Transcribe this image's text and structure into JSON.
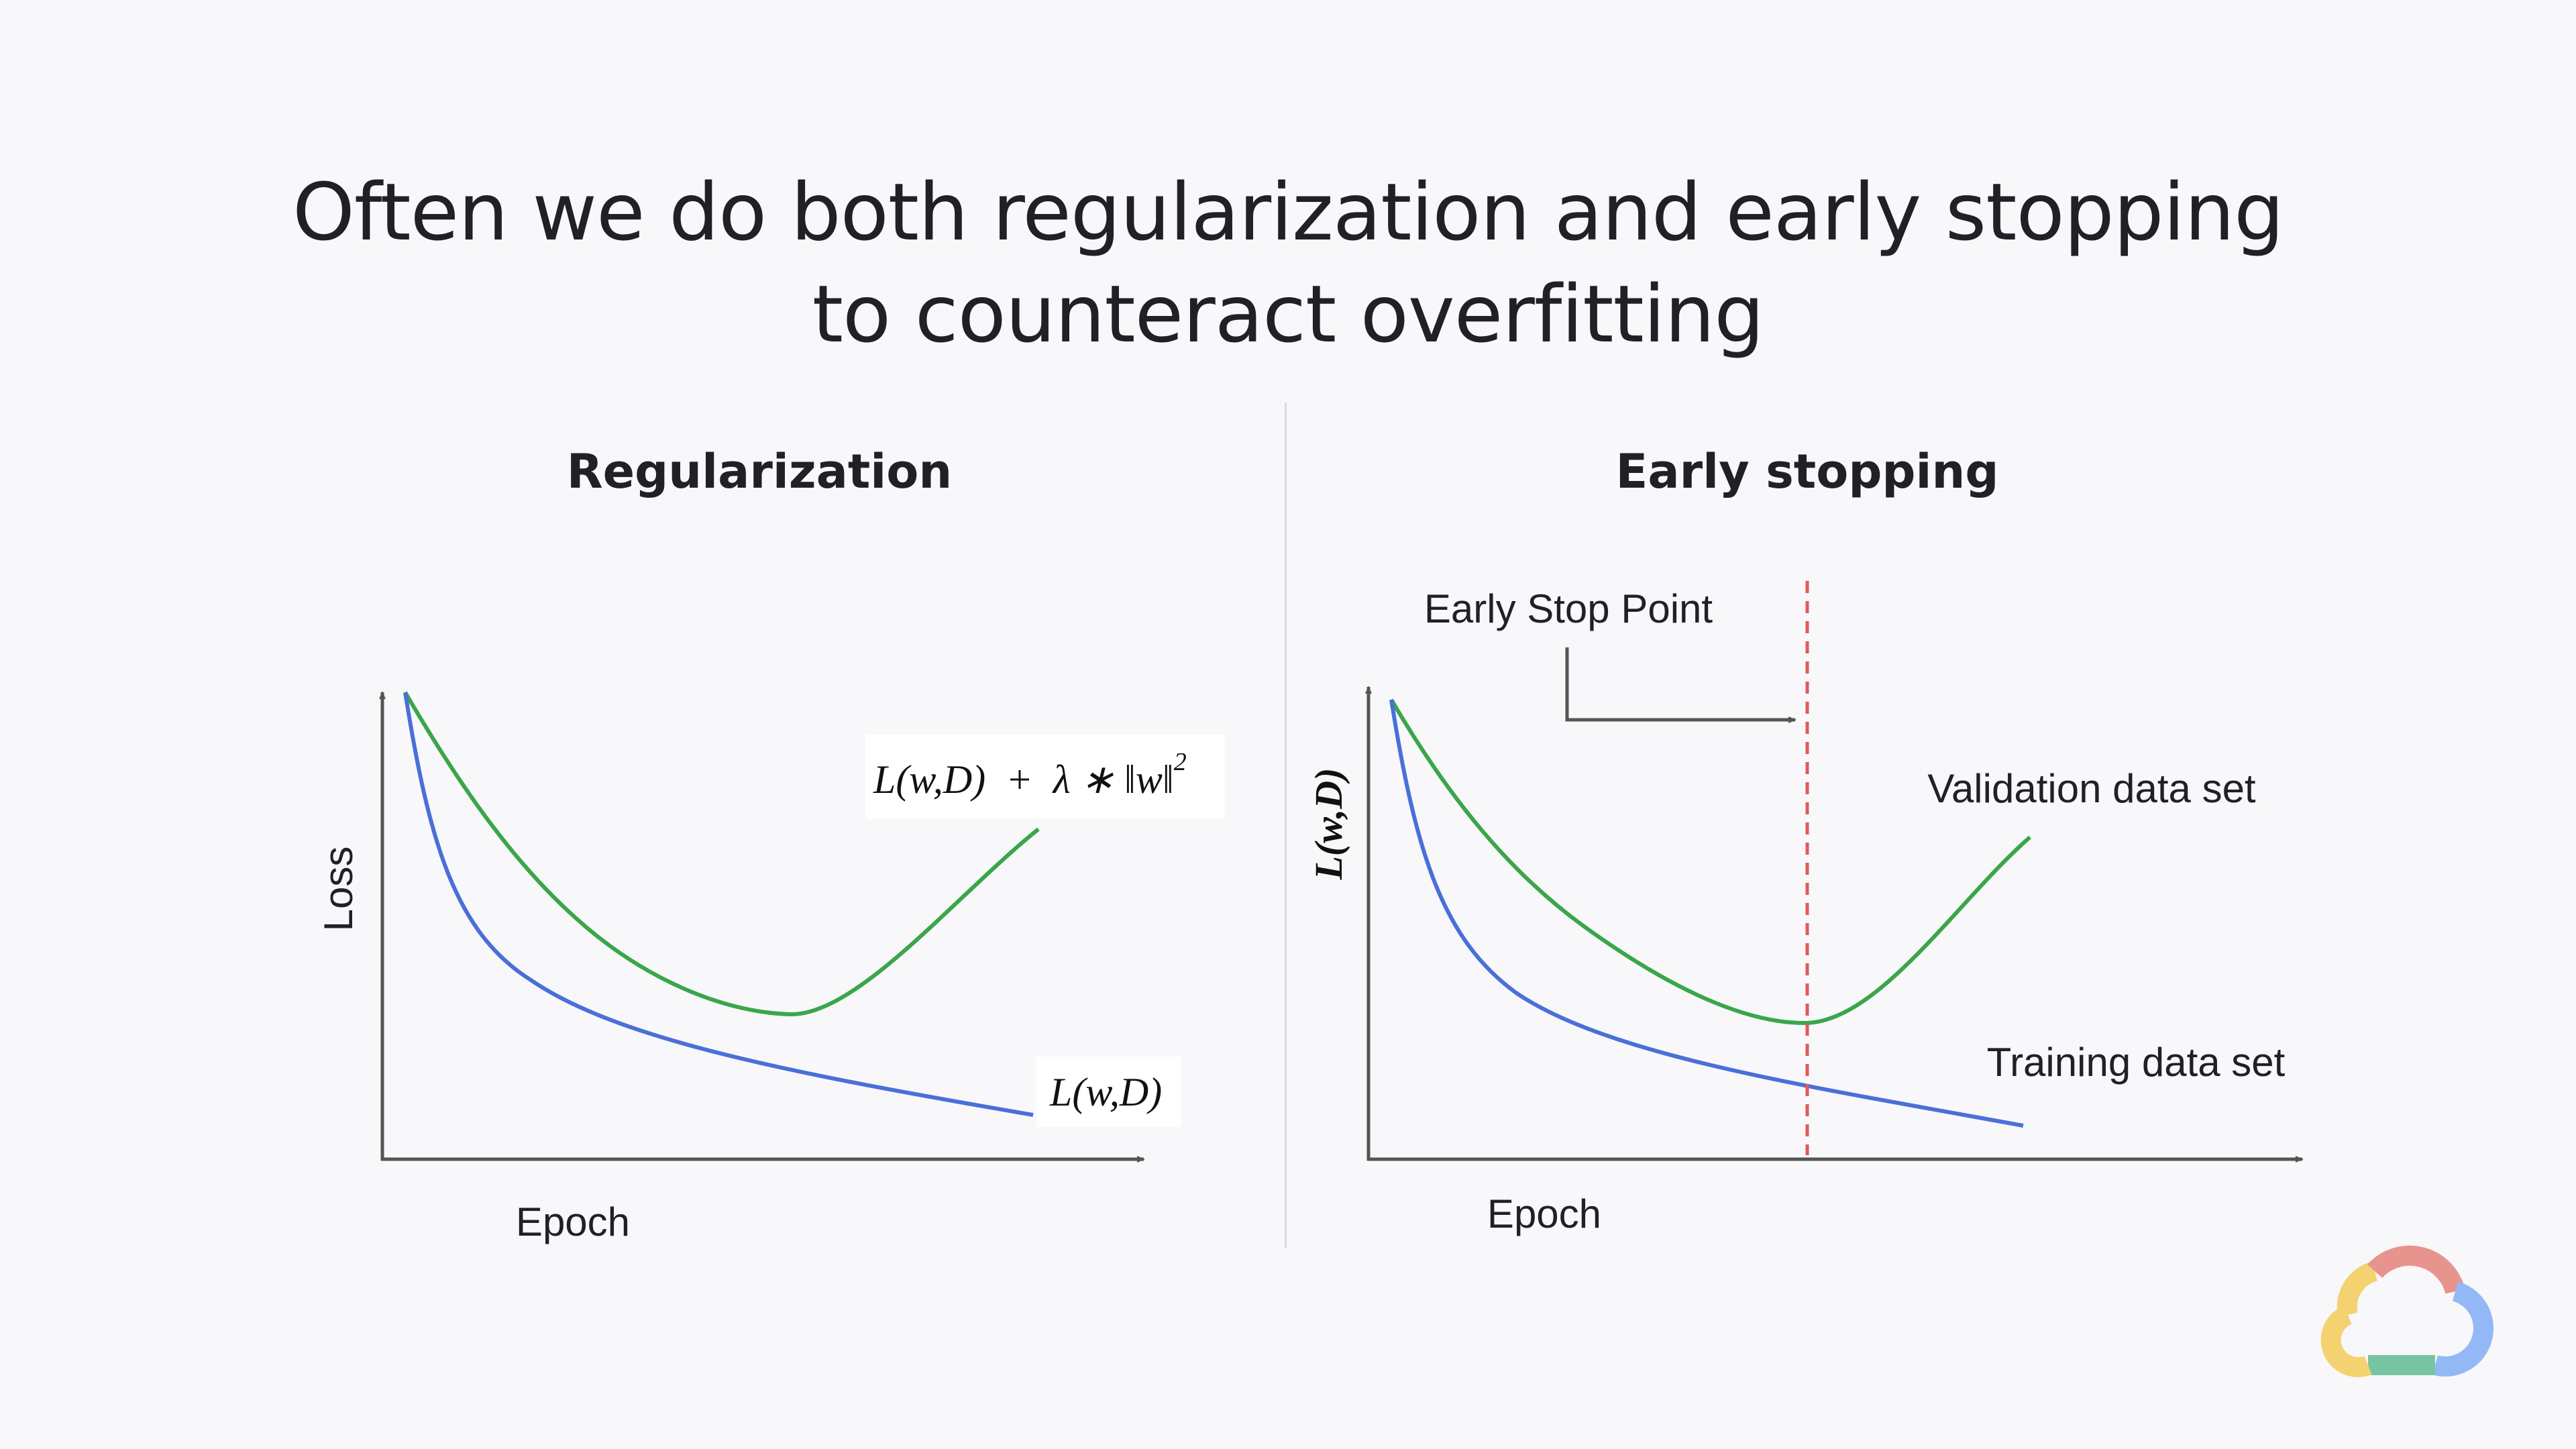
{
  "title": {
    "line1": "Often we do both regularization and early stopping",
    "line2": "to counteract overfitting"
  },
  "left_panel": {
    "heading": "Regularization",
    "y_axis_label": "Loss",
    "x_axis_label": "Epoch",
    "regularized_loss_label": "L(w,D)  +  λ ∗ ‖w‖",
    "regularized_loss_exponent": "2",
    "training_loss_label": "L(w,D)",
    "colors": {
      "upper_curve": "#3aa64a",
      "lower_curve": "#4a6fd8"
    }
  },
  "right_panel": {
    "heading": "Early stopping",
    "y_axis_label": "L(w,D)",
    "x_axis_label": "Epoch",
    "early_stop_label": "Early Stop Point",
    "validation_label": "Validation data set",
    "training_label": "Training data set",
    "colors": {
      "validation_curve": "#3aa64a",
      "training_curve": "#4a6fd8",
      "stop_line": "#e05a5a"
    }
  },
  "logo": {
    "icon": "google-cloud-logo"
  }
}
